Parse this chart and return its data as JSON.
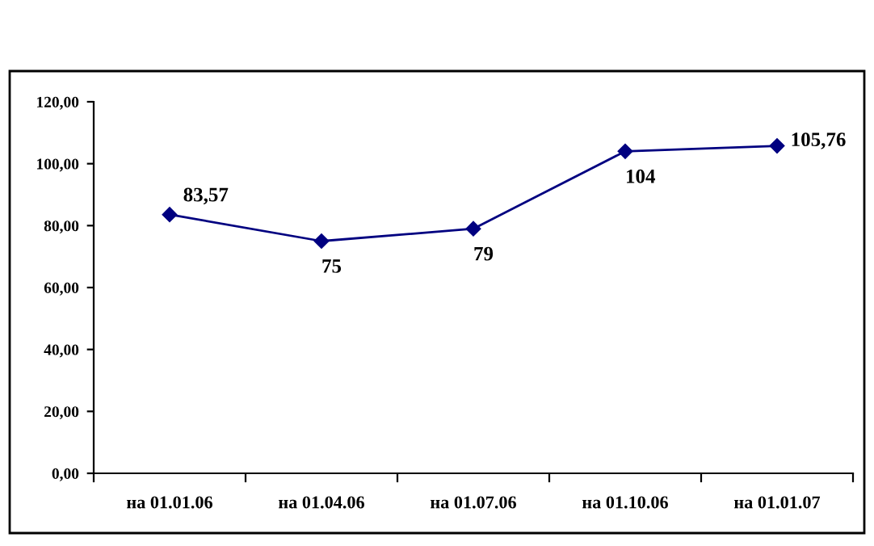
{
  "chart_data": {
    "type": "line",
    "categories": [
      "на 01.01.06",
      "на 01.04.06",
      "на 01.07.06",
      "на 01.10.06",
      "на 01.01.07"
    ],
    "series": [
      {
        "color": "#000080",
        "values": [
          83.57,
          75,
          79,
          104,
          105.76
        ],
        "value_labels": [
          "83,57",
          "75",
          "79",
          "104",
          "105,76"
        ]
      }
    ],
    "ylim": [
      0,
      120
    ],
    "yticks": [
      {
        "value": 0,
        "label": "0,00"
      },
      {
        "value": 20,
        "label": "20,00"
      },
      {
        "value": 40,
        "label": "40,00"
      },
      {
        "value": 60,
        "label": "60,00"
      },
      {
        "value": 80,
        "label": "80,00"
      },
      {
        "value": 100,
        "label": "100,00"
      },
      {
        "value": 120,
        "label": "120,00"
      }
    ],
    "grid": false,
    "legend": false,
    "marker": "diamond",
    "line_style": "solid"
  }
}
